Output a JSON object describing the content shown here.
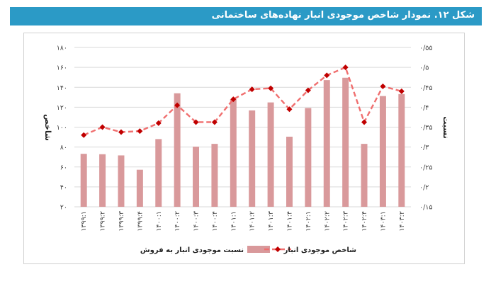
{
  "title": "شکل ۱۲. نمودار شاخص موجودی انبار نهاده‌های ساختمانی",
  "chart_data": {
    "type": "bar+line",
    "categories": [
      "۱۳۹۹:۱",
      "۱۳۹۹:۲",
      "۱۳۹۹:۳",
      "۱۳۹۹:۴",
      "۱۴۰۰:۱",
      "۱۴۰۰:۲",
      "۱۴۰۰:۳",
      "۱۴۰۰:۴",
      "۱۴۰۱:۱",
      "۱۴۰۱:۲",
      "۱۴۰۱:۳",
      "۱۴۰۱:۴",
      "۱۴۰۲:۱",
      "۱۴۰۲:۲",
      "۱۴۰۲:۳",
      "۱۴۰۲:۴",
      "۱۴۰۳:۱",
      "۱۴۰۳:۲"
    ],
    "left_axis": {
      "label": "شاخص",
      "ylim": [
        20,
        180
      ],
      "ticks": [
        20,
        40,
        60,
        80,
        100,
        120,
        140,
        160,
        180
      ],
      "tick_labels": [
        "۲۰",
        "۴۰",
        "۶۰",
        "۸۰",
        "۱۰۰",
        "۱۲۰",
        "۱۴۰",
        "۱۶۰",
        "۱۸۰"
      ]
    },
    "right_axis": {
      "label": "نسبت",
      "ylim": [
        0.15,
        0.55
      ],
      "ticks": [
        0.15,
        0.2,
        0.25,
        0.3,
        0.35,
        0.4,
        0.45,
        0.5,
        0.55
      ],
      "tick_labels": [
        "۰/۱۵",
        "۰/۲",
        "۰/۲۵",
        "۰/۳",
        "۰/۳۵",
        "۰/۴",
        "۰/۴۵",
        "۰/۵",
        "۰/۵۵"
      ]
    },
    "series": [
      {
        "name": "نسبت موجودی انبار به فروش",
        "type": "bar",
        "axis": "right",
        "color": "#d9999b",
        "values": [
          0.283,
          0.282,
          0.279,
          0.243,
          0.32,
          0.435,
          0.301,
          0.308,
          0.42,
          0.392,
          0.412,
          0.326,
          0.398,
          0.468,
          0.474,
          0.308,
          0.428,
          0.433
        ]
      },
      {
        "name": "شاخص موجودی انبار",
        "type": "line",
        "axis": "left",
        "color": "#f06f6f",
        "marker_color": "#c00000",
        "values": [
          92,
          100,
          95,
          96,
          104,
          122,
          105,
          105,
          128,
          138,
          139,
          118,
          137,
          152,
          160,
          105,
          141,
          136
        ]
      }
    ],
    "legend_position": "bottom",
    "grid": true
  }
}
